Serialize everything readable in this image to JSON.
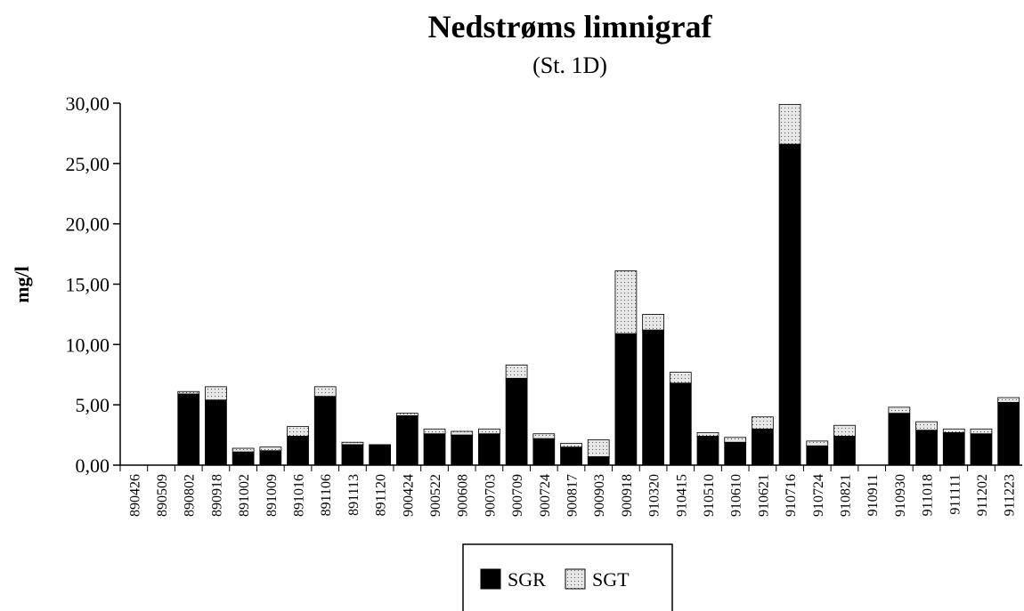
{
  "chart_data": {
    "type": "stacked-bar",
    "title": "Nedstrøms limnigraf",
    "subtitle": "(St. 1D)",
    "y_label": "mg/l",
    "categories": [
      "890426",
      "890509",
      "890802",
      "890918",
      "891002",
      "891009",
      "891016",
      "891106",
      "891113",
      "891120",
      "900424",
      "900522",
      "900608",
      "900703",
      "900709",
      "900724",
      "900817",
      "900903",
      "900918",
      "910320",
      "910415",
      "910510",
      "910610",
      "910621",
      "910716",
      "910724",
      "910821",
      "910911",
      "910930",
      "911018",
      "911111",
      "911202",
      "911223"
    ],
    "series": [
      {
        "name": "SGR",
        "color": "#000000",
        "values": [
          0,
          0,
          5.9,
          5.4,
          1.1,
          1.2,
          2.4,
          5.7,
          1.7,
          1.7,
          4.1,
          2.6,
          2.5,
          2.6,
          7.2,
          2.2,
          1.5,
          0.7,
          10.9,
          11.2,
          6.8,
          2.4,
          1.9,
          3.0,
          26.6,
          1.6,
          2.4,
          0,
          4.3,
          2.9,
          2.7,
          2.6,
          5.2
        ]
      },
      {
        "name": "SGT",
        "color": "#e6e6e6",
        "values": [
          0,
          0,
          0.2,
          1.1,
          0.3,
          0.3,
          0.8,
          0.8,
          0.2,
          0,
          0.2,
          0.4,
          0.3,
          0.4,
          1.1,
          0.4,
          0.3,
          1.4,
          5.2,
          1.3,
          0.9,
          0.3,
          0.4,
          1.0,
          3.3,
          0.4,
          0.9,
          0,
          0.5,
          0.7,
          0.3,
          0.4,
          0.4
        ]
      }
    ],
    "ylim": [
      0,
      30
    ],
    "yticks": [
      {
        "value": 0,
        "label": "0,00"
      },
      {
        "value": 5,
        "label": "5,00"
      },
      {
        "value": 10,
        "label": "10,00"
      },
      {
        "value": 15,
        "label": "15,00"
      },
      {
        "value": 20,
        "label": "20,00"
      },
      {
        "value": 25,
        "label": "25,00"
      },
      {
        "value": 30,
        "label": "30,00"
      }
    ],
    "legend": "bottom"
  }
}
